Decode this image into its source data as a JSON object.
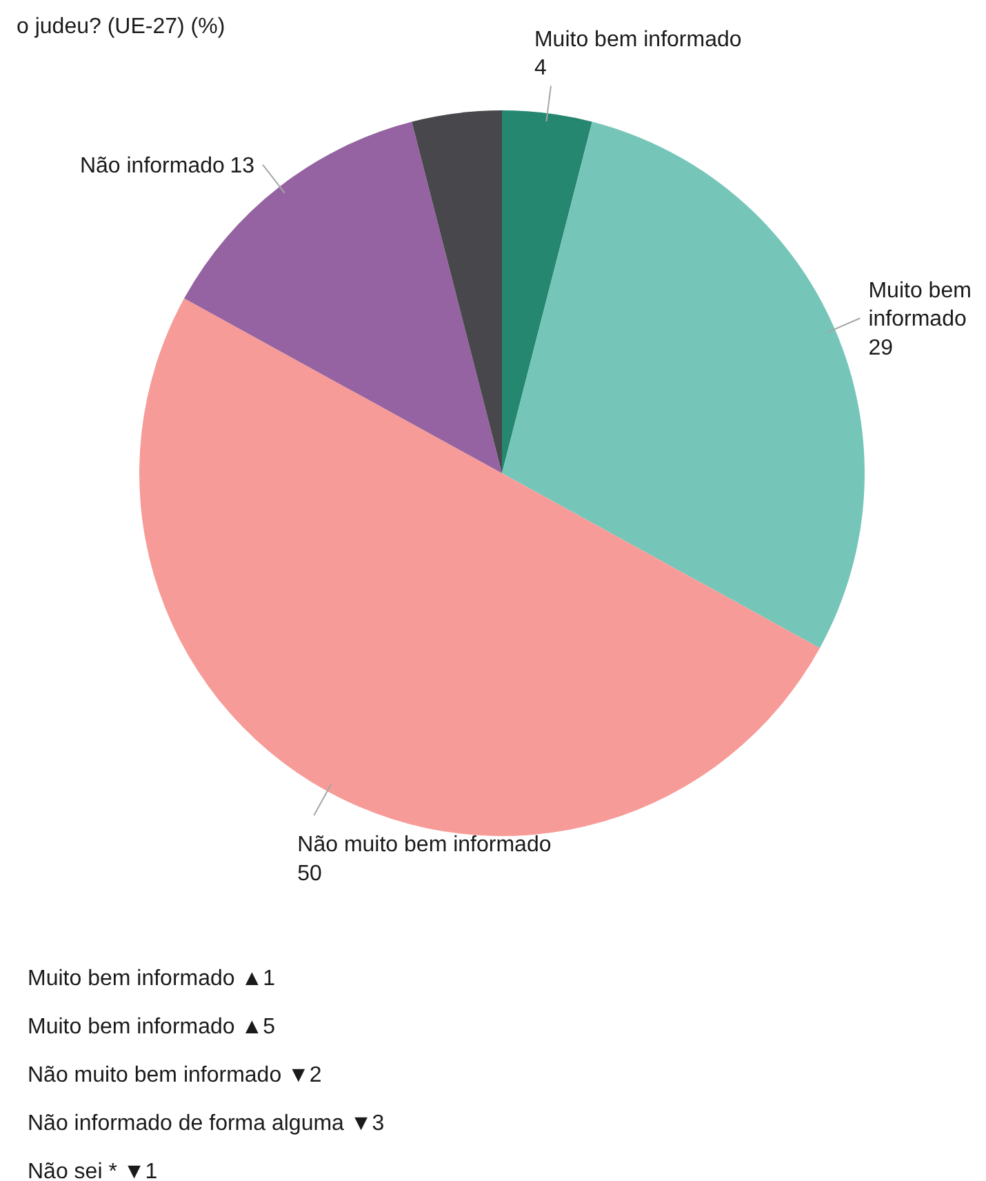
{
  "chart_data": {
    "type": "pie",
    "title": "o judeu? (UE-27) (%)",
    "categories": [
      "Muito bem informado",
      "Muito bem informado",
      "Não muito bem informado",
      "Não informado",
      null
    ],
    "values": [
      4,
      29,
      50,
      13,
      4
    ],
    "colors": [
      "#258770",
      "#75c6b8",
      "#f79b98",
      "#9563a1",
      "#48474b"
    ],
    "value_labels": [
      "4",
      "29",
      "50",
      "13",
      null
    ],
    "annotations": [
      "Muito bem informado ▲1",
      "Muito bem informado ▲5",
      "Não muito bem informado ▼2",
      "Não informado de forma alguma ▼3",
      "Não sei * ▼1"
    ]
  }
}
